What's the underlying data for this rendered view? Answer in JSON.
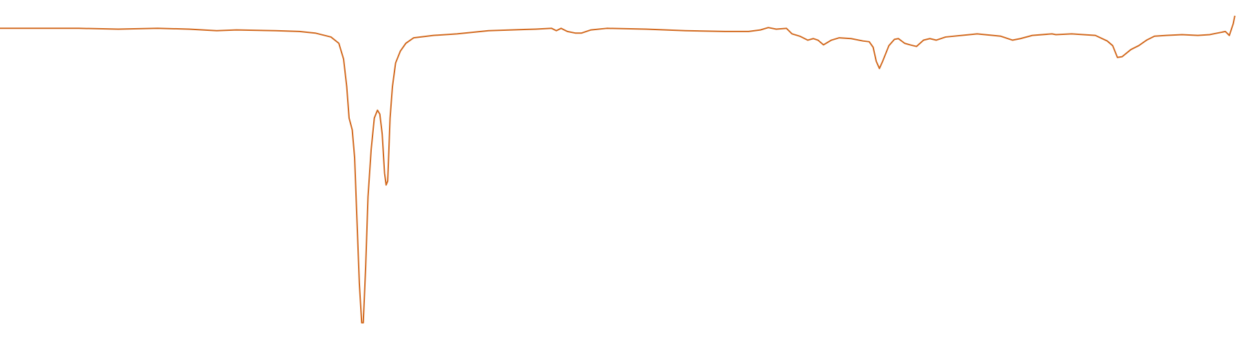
{
  "chart_data": {
    "type": "line",
    "x": [
      0,
      50,
      100,
      150,
      200,
      240,
      275,
      300,
      350,
      380,
      400,
      420,
      430,
      436,
      440,
      443,
      447,
      450,
      453,
      456,
      459,
      461,
      464,
      467,
      471,
      475,
      479,
      482,
      485,
      488,
      490,
      492,
      495,
      498,
      502,
      508,
      515,
      525,
      550,
      580,
      620,
      680,
      700,
      706,
      712,
      720,
      730,
      738,
      750,
      770,
      820,
      870,
      920,
      950,
      965,
      975,
      985,
      998,
      1005,
      1015,
      1025,
      1032,
      1038,
      1045,
      1055,
      1065,
      1080,
      1095,
      1103,
      1108,
      1112,
      1116,
      1120,
      1128,
      1135,
      1140,
      1148,
      1155,
      1163,
      1172,
      1180,
      1188,
      1200,
      1240,
      1270,
      1285,
      1295,
      1310,
      1335,
      1340,
      1360,
      1390,
      1405,
      1412,
      1418,
      1424,
      1435,
      1445,
      1455,
      1465,
      1480,
      1500,
      1520,
      1535,
      1545,
      1555,
      1560,
      1565,
      1567
    ],
    "series": [
      {
        "color": "#d2691e",
        "values": [
          96,
          96,
          96,
          95.75,
          96,
          95.75,
          95.25,
          95.5,
          95.25,
          95,
          94.5,
          93.25,
          91.25,
          86.25,
          77.5,
          67.5,
          63.75,
          55,
          35,
          15,
          2.5,
          2.5,
          20,
          42.5,
          57.5,
          67.5,
          70,
          68.75,
          62.5,
          50,
          46.25,
          47.5,
          67.5,
          77.5,
          85,
          88.75,
          91.25,
          93,
          93.75,
          94.25,
          95.25,
          95.75,
          96,
          95.25,
          96,
          95,
          94.5,
          94.5,
          95.5,
          96,
          95.75,
          95.25,
          95,
          95,
          95.5,
          96.25,
          95.75,
          96,
          94.25,
          93.5,
          92.25,
          92.75,
          92.25,
          90.75,
          92.25,
          93,
          92.75,
          92,
          91.75,
          90,
          85.5,
          83.25,
          85.5,
          90.5,
          92.5,
          92.75,
          91.25,
          90.75,
          90.25,
          92.25,
          92.75,
          92.25,
          93.25,
          94.25,
          93.5,
          92.25,
          92.75,
          93.75,
          94.25,
          94,
          94.25,
          93.75,
          92,
          90.5,
          86.75,
          87,
          89.25,
          90.5,
          92.25,
          93.5,
          93.75,
          94,
          93.75,
          94,
          94.5,
          95,
          93.75,
          97.5,
          100
        ]
      }
    ],
    "xlim": [
      0,
      1568
    ],
    "ylim": [
      0,
      105
    ]
  }
}
